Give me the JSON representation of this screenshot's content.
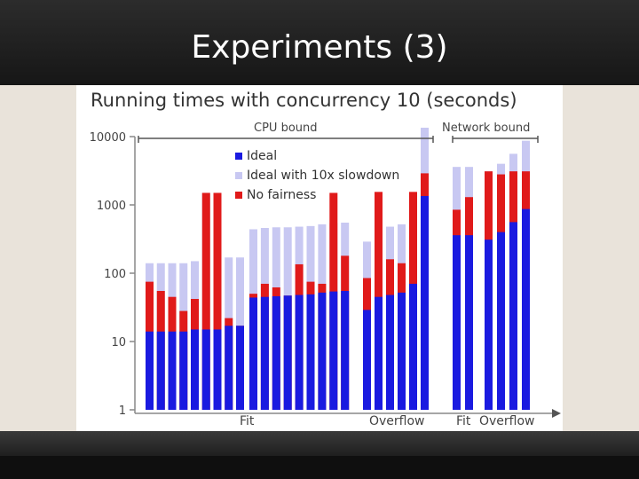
{
  "slide": {
    "title": "Experiments (3)"
  },
  "chart_data": {
    "type": "bar",
    "stacked": true,
    "title": "Running times with concurrency 10 (seconds)",
    "yscale": "log",
    "ylim": [
      1,
      10000
    ],
    "yticks": [
      "1",
      "10",
      "100",
      "1000",
      "10000"
    ],
    "xlabel_groups": [
      "Fit",
      "Overflow",
      "Fit",
      "Overflow"
    ],
    "regions": [
      "CPU bound",
      "Network bound"
    ],
    "legend": [
      {
        "name": "Ideal",
        "color": "#1a1ae0"
      },
      {
        "name": "Ideal with 10x slowdown",
        "color": "#c8c8f2"
      },
      {
        "name": "No fairness",
        "color": "#e01a1a"
      }
    ],
    "series_note": "Each bar: ideal (blue), no-fairness (red), ideal-with-10x-slowdown (lavender); bars drawn overlapping on log scale",
    "bars": [
      {
        "ideal": 14,
        "nofair": 75,
        "slow": 140
      },
      {
        "ideal": 14,
        "nofair": 55,
        "slow": 140
      },
      {
        "ideal": 14,
        "nofair": 45,
        "slow": 140
      },
      {
        "ideal": 14,
        "nofair": 28,
        "slow": 140
      },
      {
        "ideal": 15,
        "nofair": 42,
        "slow": 150
      },
      {
        "ideal": 15,
        "nofair": 1500,
        "slow": 1500
      },
      {
        "ideal": 15,
        "nofair": 1500,
        "slow": 1500
      },
      {
        "ideal": 17,
        "nofair": 22,
        "slow": 170
      },
      {
        "ideal": 17,
        "nofair": 17,
        "slow": 170
      },
      {
        "ideal": 44,
        "nofair": 50,
        "slow": 440
      },
      {
        "ideal": 45,
        "nofair": 70,
        "slow": 460
      },
      {
        "ideal": 46,
        "nofair": 62,
        "slow": 470
      },
      {
        "ideal": 47,
        "nofair": 47,
        "slow": 470
      },
      {
        "ideal": 48,
        "nofair": 135,
        "slow": 480
      },
      {
        "ideal": 49,
        "nofair": 75,
        "slow": 490
      },
      {
        "ideal": 52,
        "nofair": 70,
        "slow": 520
      },
      {
        "ideal": 54,
        "nofair": 1500,
        "slow": 540
      },
      {
        "ideal": 55,
        "nofair": 180,
        "slow": 550
      },
      {
        "ideal": 29,
        "nofair": 85,
        "slow": 290
      },
      {
        "ideal": 45,
        "nofair": 1550,
        "slow": 450
      },
      {
        "ideal": 48,
        "nofair": 160,
        "slow": 480
      },
      {
        "ideal": 52,
        "nofair": 140,
        "slow": 520
      },
      {
        "ideal": 70,
        "nofair": 1550,
        "slow": 700
      },
      {
        "ideal": 1350,
        "nofair": 2900,
        "slow": 13500
      },
      {
        "ideal": 360,
        "nofair": 850,
        "slow": 3600
      },
      {
        "ideal": 360,
        "nofair": 1300,
        "slow": 3600
      },
      {
        "ideal": 310,
        "nofair": 3100,
        "slow": 3100
      },
      {
        "ideal": 400,
        "nofair": 2800,
        "slow": 4000
      },
      {
        "ideal": 560,
        "nofair": 3100,
        "slow": 5600
      },
      {
        "ideal": 870,
        "nofair": 3100,
        "slow": 8700
      }
    ]
  }
}
